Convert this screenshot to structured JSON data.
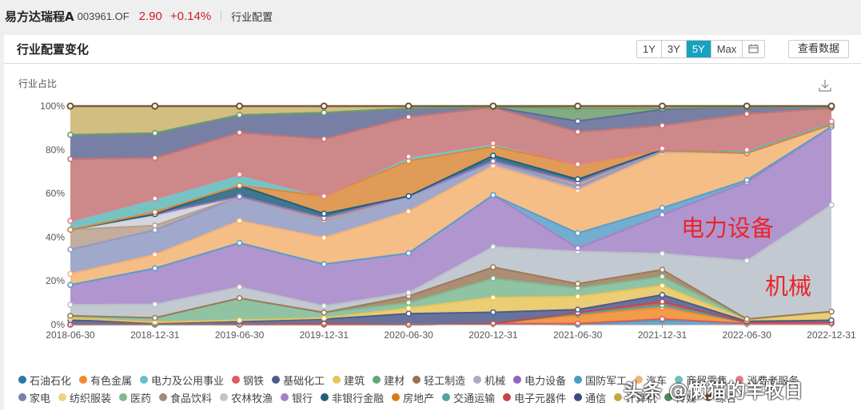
{
  "header": {
    "fund_name": "易方达瑞程A",
    "fund_code": "003961.OF",
    "price": "2.90",
    "change": "+0.14%",
    "section": "行业配置"
  },
  "panel": {
    "title": "行业配置变化",
    "ranges": [
      "1Y",
      "3Y",
      "5Y",
      "Max"
    ],
    "active_range": "5Y",
    "calendar_icon": "calendar-icon",
    "view_data_label": "查看数据",
    "download_icon": "download-icon"
  },
  "annotations": {
    "power_equipment": "电力设备",
    "machinery": "机械"
  },
  "watermark": "头条 @懒猫的羊牧日",
  "chart_data": {
    "type": "area",
    "stacked": true,
    "title": "行业配置变化",
    "ylabel": "行业占比",
    "xlabel": "",
    "ylim": [
      0,
      100
    ],
    "yticks": [
      "0%",
      "20%",
      "40%",
      "60%",
      "80%",
      "100%"
    ],
    "categories": [
      "2018-06-30",
      "2018-12-31",
      "2019-06-30",
      "2019-12-31",
      "2020-06-30",
      "2020-12-31",
      "2021-06-30",
      "2021-12-31",
      "2022-06-30",
      "2022-12-31"
    ],
    "legend_position": "bottom",
    "grid": false,
    "series": [
      {
        "name": "国防军工",
        "color": "#4a9cc7",
        "values": [
          0,
          0,
          0,
          0,
          0,
          0.5,
          0,
          2,
          0.5,
          0.5
        ]
      },
      {
        "name": "钢铁",
        "color": "#e05a5a",
        "values": [
          0,
          0,
          0,
          0,
          0,
          0,
          0.5,
          0.5,
          0,
          0
        ]
      },
      {
        "name": "有色金属",
        "color": "#f08a2a",
        "values": [
          0,
          0,
          0,
          0.5,
          0,
          0,
          4,
          5,
          0.5,
          0.5
        ]
      },
      {
        "name": "交通运输",
        "color": "#4fa3a0",
        "values": [
          0,
          0,
          0,
          0,
          0,
          0,
          0.5,
          1,
          0,
          0
        ]
      },
      {
        "name": "电子元器件",
        "color": "#c2474b",
        "values": [
          0,
          0.5,
          0,
          0,
          0,
          0,
          0.5,
          1.5,
          0,
          0
        ]
      },
      {
        "name": "基础化工",
        "color": "#4d5b8c",
        "values": [
          2,
          0.5,
          1.5,
          2,
          5,
          5,
          1.5,
          3,
          0.5,
          1
        ]
      },
      {
        "name": "建筑",
        "color": "#e8c55a",
        "values": [
          1,
          0,
          0.5,
          0.5,
          2.5,
          6.5,
          6,
          4,
          0.5,
          4
        ]
      },
      {
        "name": "医药",
        "color": "#7db892",
        "values": [
          1,
          2,
          10,
          2.5,
          2.5,
          8.5,
          4,
          4,
          0.5,
          0
        ]
      },
      {
        "name": "轻工制造",
        "color": "#9c7a5a",
        "values": [
          0,
          0,
          0,
          0,
          3,
          5,
          2,
          3,
          0,
          0
        ]
      },
      {
        "name": "机械",
        "color": "#b8c0c8",
        "values": [
          5,
          6,
          5,
          3,
          1.5,
          9,
          15,
          7,
          26,
          49
        ]
      },
      {
        "name": "电力设备",
        "color": "#a382c6",
        "values": [
          9,
          16,
          20,
          19,
          18,
          23,
          1.5,
          17,
          35,
          36
        ]
      },
      {
        "name": "国防军工2",
        "color": "#5a9fc8",
        "values": [
          0,
          0,
          0,
          0,
          0,
          0,
          7,
          3,
          1,
          0
        ]
      },
      {
        "name": "汽车",
        "color": "#f5b372",
        "values": [
          5,
          6,
          10,
          12,
          19,
          13,
          20,
          24,
          12,
          1
        ]
      },
      {
        "name": "家电",
        "color": "#8f99c2",
        "values": [
          11,
          11,
          11,
          8,
          7,
          2,
          1.5,
          1,
          0,
          0
        ]
      },
      {
        "name": "食品饮料",
        "color": "#b89f8c",
        "values": [
          9,
          2,
          0,
          0,
          0,
          0,
          1.5,
          0.5,
          0,
          0
        ]
      },
      {
        "name": "农林牧渔",
        "color": "#cdd1d8",
        "values": [
          0,
          4,
          0,
          1,
          0,
          0,
          0.5,
          0,
          0,
          0
        ]
      },
      {
        "name": "银行",
        "color": "#9a74c0",
        "values": [
          0,
          1,
          0,
          0,
          0,
          0,
          0,
          0,
          0,
          0
        ]
      },
      {
        "name": "非银行金融",
        "color": "#1f5f7a",
        "values": [
          0,
          0,
          5,
          2,
          0,
          2.5,
          1.5,
          0,
          0,
          0
        ]
      },
      {
        "name": "房地产",
        "color": "#d9893a",
        "values": [
          0,
          1,
          0,
          8,
          16,
          4,
          7,
          0,
          0,
          0
        ]
      },
      {
        "name": "电力及公用事业",
        "color": "#5fb8b8",
        "values": [
          4,
          6,
          5,
          0,
          2,
          1.5,
          0,
          0.5,
          1,
          1
        ]
      },
      {
        "name": "消费者服务",
        "color": "#e57d8b",
        "values": [
          0,
          0,
          0,
          0,
          0,
          0,
          0,
          0,
          0.5,
          0.5
        ]
      },
      {
        "name": "电子元器件_top",
        "color": "#c47375",
        "values": [
          28,
          18,
          19,
          26,
          18,
          16,
          15,
          10,
          16,
          6
        ]
      },
      {
        "name": "通信",
        "color": "#5f6a94",
        "values": [
          11,
          11,
          8,
          12,
          4,
          0,
          5,
          7,
          3,
          0.5
        ]
      },
      {
        "name": "传媒",
        "color": "#6c9e6c",
        "values": [
          0,
          0,
          0,
          0,
          0,
          0,
          6,
          0.5,
          0,
          0
        ]
      },
      {
        "name": "计算机",
        "color": "#c9b36a",
        "values": [
          13,
          12,
          4,
          3,
          1,
          0.5,
          1,
          1,
          0.5,
          0.5
        ]
      },
      {
        "name": "综合",
        "color": "#7a5e3e",
        "values": [
          0,
          0,
          0,
          0,
          0,
          0,
          0,
          0,
          0,
          0
        ]
      }
    ]
  },
  "legend": {
    "row1": [
      {
        "label": "石油石化",
        "color": "#2b7aa8"
      },
      {
        "label": "有色金属",
        "color": "#f08a2a"
      },
      {
        "label": "电力及公用事业",
        "color": "#5fc2c4"
      },
      {
        "label": "钢铁",
        "color": "#e05a5a"
      },
      {
        "label": "基础化工",
        "color": "#4d5b8c"
      },
      {
        "label": "建筑",
        "color": "#e8c55a"
      },
      {
        "label": "建材",
        "color": "#5fa878"
      },
      {
        "label": "轻工制造",
        "color": "#9c7052"
      },
      {
        "label": "机械",
        "color": "#a8b0bc"
      },
      {
        "label": "电力设备",
        "color": "#8f63be"
      },
      {
        "label": "国防军工",
        "color": "#4a9cc7"
      },
      {
        "label": "汽车",
        "color": "#f5b372"
      },
      {
        "label": "商贸零售",
        "color": "#6fc0c0"
      },
      {
        "label": "消费者服务",
        "color": "#e57d8b"
      }
    ],
    "row2": [
      {
        "label": "家电",
        "color": "#7a7fb0"
      },
      {
        "label": "纺织服装",
        "color": "#ecd27a"
      },
      {
        "label": "医药",
        "color": "#7db892"
      },
      {
        "label": "食品饮料",
        "color": "#a68a78"
      },
      {
        "label": "农林牧渔",
        "color": "#c0c4cc"
      },
      {
        "label": "银行",
        "color": "#a382c6"
      },
      {
        "label": "非银行金融",
        "color": "#1f5f7a"
      },
      {
        "label": "房地产",
        "color": "#d97a1f"
      },
      {
        "label": "交通运输",
        "color": "#4fa3a0"
      },
      {
        "label": "电子元器件",
        "color": "#c2474b"
      },
      {
        "label": "通信",
        "color": "#3d4a80"
      },
      {
        "label": "计算机",
        "color": "#c9a640"
      },
      {
        "label": "传媒",
        "color": "#4e8a5a"
      },
      {
        "label": "综合",
        "color": "#7a5e3e"
      }
    ]
  }
}
